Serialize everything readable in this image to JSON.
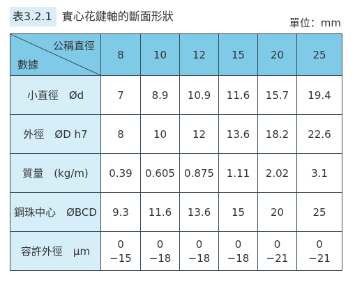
{
  "header": {
    "table_number": "表3.2.1",
    "title": "實心花鍵軸的斷面形狀",
    "unit": "單位：mm"
  },
  "table": {
    "corner_top": "公稱直徑",
    "corner_bottom": "數據",
    "columns": [
      "8",
      "10",
      "12",
      "15",
      "20",
      "25"
    ],
    "rows": [
      {
        "label": "小直徑　Ød",
        "values": [
          "7",
          "8.9",
          "10.9",
          "11.6",
          "15.7",
          "19.4"
        ]
      },
      {
        "label": "外徑　ØD h7",
        "values": [
          "8",
          "10",
          "12",
          "13.6",
          "18.2",
          "22.6"
        ]
      },
      {
        "label": "質量　(kg/m)",
        "values": [
          "0.39",
          "0.605",
          "0.875",
          "1.11",
          "2.02",
          "3.1"
        ]
      },
      {
        "label": "鋼珠中心　ØBCD",
        "values": [
          "9.3",
          "11.6",
          "13.6",
          "15",
          "20",
          "25"
        ]
      },
      {
        "label": "容許外徑　μm",
        "values": [
          [
            "0",
            "−15"
          ],
          [
            "0",
            "−18"
          ],
          [
            "0",
            "−18"
          ],
          [
            "0",
            "−18"
          ],
          [
            "0",
            "−21"
          ],
          [
            "0",
            "−21"
          ]
        ]
      }
    ]
  }
}
